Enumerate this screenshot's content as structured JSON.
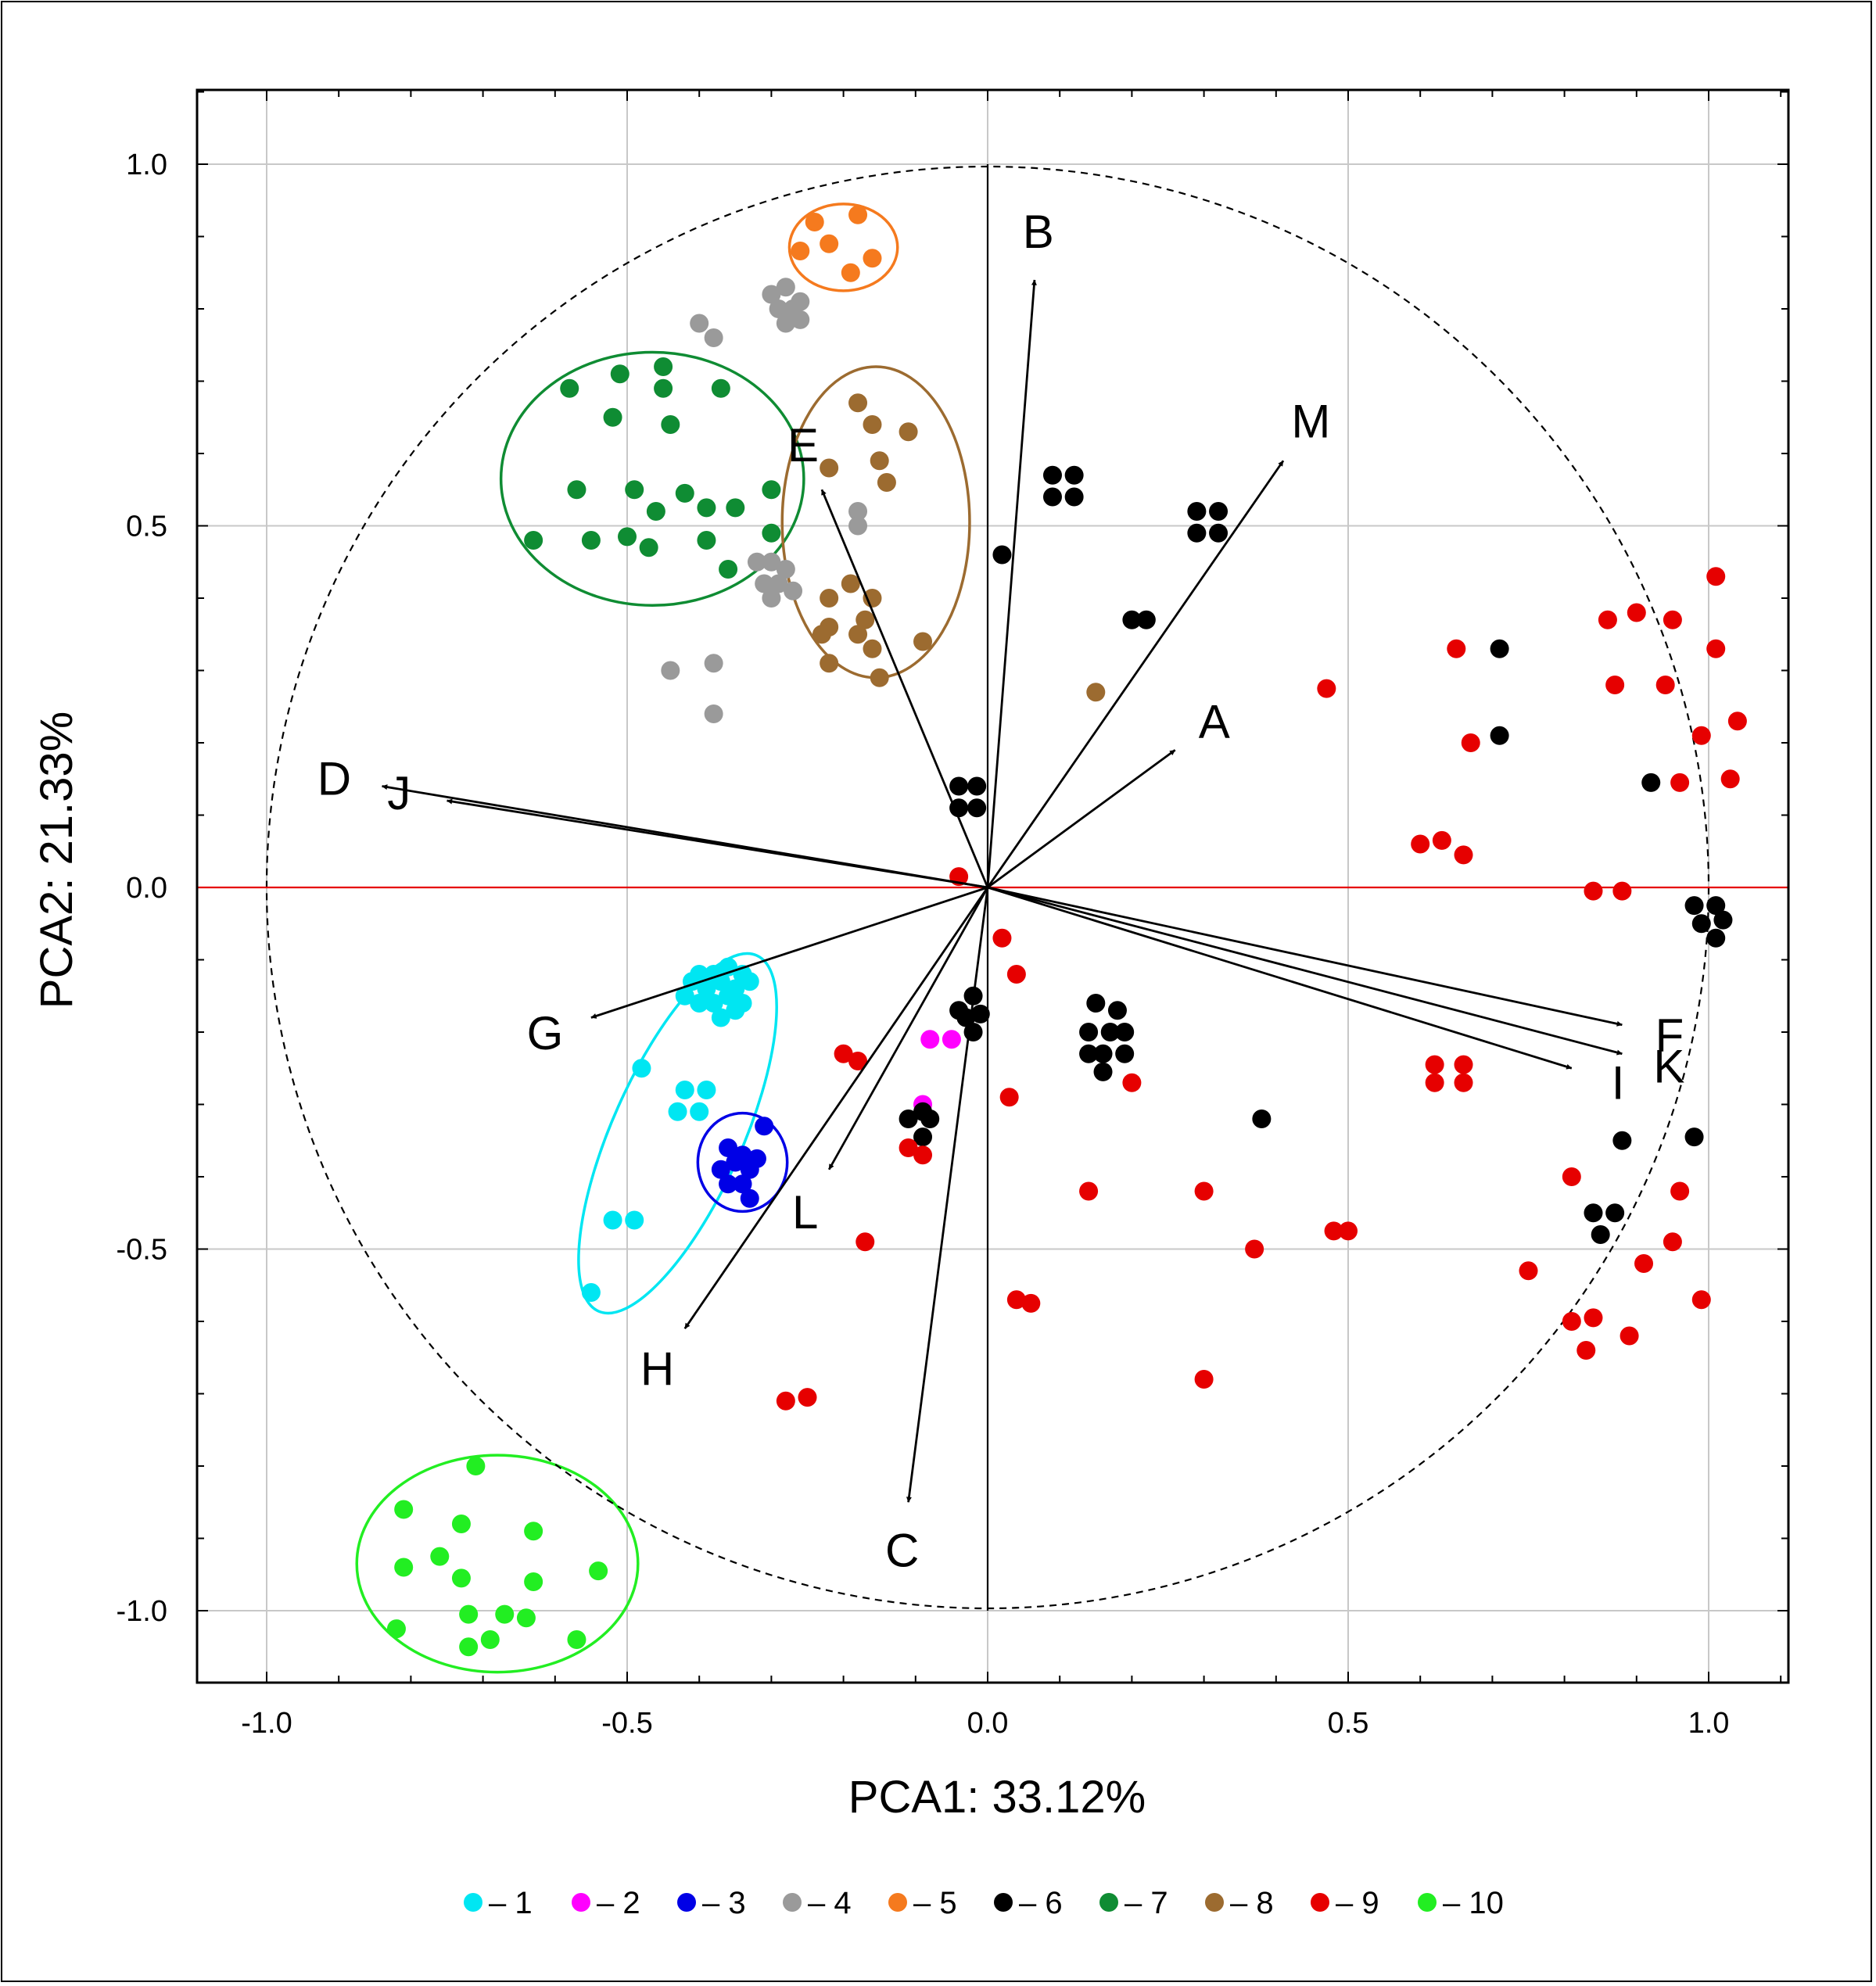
{
  "chart_data": {
    "type": "scatter",
    "subtype": "PCA biplot",
    "xlabel": "PCA1: 33.12%",
    "ylabel": "PCA2: 21.33%",
    "xlim": [
      -1.1,
      1.1
    ],
    "ylim": [
      -1.1,
      1.1
    ],
    "xticks": [
      -1.0,
      -0.5,
      0.0,
      0.5,
      1.0
    ],
    "yticks": [
      -1.0,
      -0.5,
      0.0,
      0.5,
      1.0
    ],
    "xtick_labels": [
      "-1.0",
      "-0.5",
      "0.0",
      "0.5",
      "1.0"
    ],
    "ytick_labels": [
      "1.0",
      "0.5",
      "0.0",
      "-0.5",
      "-1.0"
    ],
    "grid": true,
    "unit_circle": true,
    "legend_position": "bottom",
    "vectors": [
      {
        "label": "A",
        "x": 0.26,
        "y": 0.19
      },
      {
        "label": "B",
        "x": 0.065,
        "y": 0.84
      },
      {
        "label": "C",
        "x": -0.11,
        "y": -0.85
      },
      {
        "label": "D",
        "x": -0.84,
        "y": 0.14
      },
      {
        "label": "E",
        "x": -0.23,
        "y": 0.55
      },
      {
        "label": "F",
        "x": 0.88,
        "y": -0.19
      },
      {
        "label": "G",
        "x": -0.55,
        "y": -0.18
      },
      {
        "label": "H",
        "x": -0.42,
        "y": -0.61
      },
      {
        "label": "I",
        "x": 0.81,
        "y": -0.25
      },
      {
        "label": "J",
        "x": -0.75,
        "y": 0.12
      },
      {
        "label": "K",
        "x": 0.88,
        "y": -0.23
      },
      {
        "label": "L",
        "x": -0.22,
        "y": -0.39
      },
      {
        "label": "M",
        "x": 0.41,
        "y": 0.59
      }
    ],
    "series": [
      {
        "name": "1",
        "color": "#00e6f2",
        "points": [
          [
            -0.4,
            -0.12
          ],
          [
            -0.38,
            -0.12
          ],
          [
            -0.36,
            -0.11
          ],
          [
            -0.34,
            -0.12
          ],
          [
            -0.41,
            -0.13
          ],
          [
            -0.39,
            -0.14
          ],
          [
            -0.37,
            -0.13
          ],
          [
            -0.35,
            -0.14
          ],
          [
            -0.33,
            -0.13
          ],
          [
            -0.42,
            -0.15
          ],
          [
            -0.4,
            -0.16
          ],
          [
            -0.38,
            -0.16
          ],
          [
            -0.36,
            -0.15
          ],
          [
            -0.34,
            -0.16
          ],
          [
            -0.37,
            -0.18
          ],
          [
            -0.35,
            -0.17
          ],
          [
            -0.48,
            -0.25
          ],
          [
            -0.42,
            -0.28
          ],
          [
            -0.39,
            -0.28
          ],
          [
            -0.43,
            -0.31
          ],
          [
            -0.4,
            -0.31
          ],
          [
            -0.52,
            -0.46
          ],
          [
            -0.49,
            -0.46
          ],
          [
            -0.55,
            -0.56
          ]
        ]
      },
      {
        "name": "2",
        "color": "#ff00ff",
        "points": [
          [
            -0.08,
            -0.21
          ],
          [
            -0.05,
            -0.21
          ],
          [
            -0.09,
            -0.3
          ]
        ]
      },
      {
        "name": "3",
        "color": "#0000e6",
        "points": [
          [
            -0.31,
            -0.33
          ],
          [
            -0.36,
            -0.36
          ],
          [
            -0.34,
            -0.37
          ],
          [
            -0.32,
            -0.375
          ],
          [
            -0.37,
            -0.39
          ],
          [
            -0.35,
            -0.38
          ],
          [
            -0.33,
            -0.39
          ],
          [
            -0.36,
            -0.41
          ],
          [
            -0.34,
            -0.41
          ],
          [
            -0.33,
            -0.43
          ]
        ]
      },
      {
        "name": "4",
        "color": "#9a9a9a",
        "points": [
          [
            -0.3,
            0.82
          ],
          [
            -0.28,
            0.83
          ],
          [
            -0.26,
            0.81
          ],
          [
            -0.29,
            0.8
          ],
          [
            -0.27,
            0.8
          ],
          [
            -0.28,
            0.78
          ],
          [
            -0.26,
            0.785
          ],
          [
            -0.27,
            0.79
          ],
          [
            -0.4,
            0.78
          ],
          [
            -0.38,
            0.76
          ],
          [
            -0.18,
            0.52
          ],
          [
            -0.18,
            0.5
          ],
          [
            -0.32,
            0.45
          ],
          [
            -0.3,
            0.45
          ],
          [
            -0.28,
            0.44
          ],
          [
            -0.31,
            0.42
          ],
          [
            -0.29,
            0.42
          ],
          [
            -0.27,
            0.41
          ],
          [
            -0.3,
            0.4
          ],
          [
            -0.44,
            0.3
          ],
          [
            -0.38,
            0.31
          ],
          [
            -0.38,
            0.24
          ]
        ]
      },
      {
        "name": "5",
        "color": "#f57a1e",
        "points": [
          [
            -0.24,
            0.92
          ],
          [
            -0.18,
            0.93
          ],
          [
            -0.26,
            0.88
          ],
          [
            -0.22,
            0.89
          ],
          [
            -0.16,
            0.87
          ],
          [
            -0.19,
            0.85
          ]
        ]
      },
      {
        "name": "6",
        "color": "#000000",
        "points": [
          [
            0.09,
            0.57
          ],
          [
            0.12,
            0.57
          ],
          [
            0.09,
            0.54
          ],
          [
            0.12,
            0.54
          ],
          [
            0.29,
            0.52
          ],
          [
            0.32,
            0.52
          ],
          [
            0.29,
            0.49
          ],
          [
            0.32,
            0.49
          ],
          [
            0.02,
            0.46
          ],
          [
            0.2,
            0.37
          ],
          [
            0.22,
            0.37
          ],
          [
            -0.04,
            0.14
          ],
          [
            -0.015,
            0.14
          ],
          [
            -0.04,
            0.11
          ],
          [
            -0.015,
            0.11
          ],
          [
            -0.02,
            -0.15
          ],
          [
            -0.04,
            -0.17
          ],
          [
            -0.01,
            -0.175
          ],
          [
            -0.03,
            -0.18
          ],
          [
            -0.02,
            -0.2
          ],
          [
            0.15,
            -0.16
          ],
          [
            0.18,
            -0.17
          ],
          [
            0.14,
            -0.2
          ],
          [
            0.17,
            -0.2
          ],
          [
            0.19,
            -0.2
          ],
          [
            0.14,
            -0.23
          ],
          [
            0.16,
            -0.23
          ],
          [
            0.19,
            -0.23
          ],
          [
            0.16,
            -0.255
          ],
          [
            -0.11,
            -0.32
          ],
          [
            -0.09,
            -0.31
          ],
          [
            -0.08,
            -0.32
          ],
          [
            -0.09,
            -0.345
          ],
          [
            0.38,
            -0.32
          ],
          [
            0.71,
            0.33
          ],
          [
            0.71,
            0.21
          ],
          [
            0.92,
            0.145
          ],
          [
            0.98,
            -0.025
          ],
          [
            1.01,
            -0.025
          ],
          [
            0.99,
            -0.05
          ],
          [
            1.02,
            -0.045
          ],
          [
            1.01,
            -0.07
          ],
          [
            0.88,
            -0.35
          ],
          [
            0.98,
            -0.345
          ],
          [
            0.84,
            -0.45
          ],
          [
            0.87,
            -0.45
          ],
          [
            0.85,
            -0.48
          ]
        ]
      },
      {
        "name": "7",
        "color": "#0f8c33",
        "points": [
          [
            -0.58,
            0.69
          ],
          [
            -0.51,
            0.71
          ],
          [
            -0.45,
            0.72
          ],
          [
            -0.45,
            0.69
          ],
          [
            -0.37,
            0.69
          ],
          [
            -0.52,
            0.65
          ],
          [
            -0.44,
            0.64
          ],
          [
            -0.57,
            0.55
          ],
          [
            -0.49,
            0.55
          ],
          [
            -0.42,
            0.545
          ],
          [
            -0.3,
            0.55
          ],
          [
            -0.46,
            0.52
          ],
          [
            -0.39,
            0.525
          ],
          [
            -0.35,
            0.525
          ],
          [
            -0.63,
            0.48
          ],
          [
            -0.55,
            0.48
          ],
          [
            -0.5,
            0.485
          ],
          [
            -0.47,
            0.47
          ],
          [
            -0.39,
            0.48
          ],
          [
            -0.3,
            0.49
          ],
          [
            -0.36,
            0.44
          ]
        ]
      },
      {
        "name": "8",
        "color": "#9c6b30",
        "points": [
          [
            -0.18,
            0.67
          ],
          [
            -0.16,
            0.64
          ],
          [
            -0.11,
            0.63
          ],
          [
            -0.22,
            0.58
          ],
          [
            -0.15,
            0.59
          ],
          [
            -0.14,
            0.56
          ],
          [
            -0.22,
            0.4
          ],
          [
            -0.19,
            0.42
          ],
          [
            -0.16,
            0.4
          ],
          [
            -0.22,
            0.36
          ],
          [
            -0.17,
            0.37
          ],
          [
            -0.23,
            0.35
          ],
          [
            -0.18,
            0.35
          ],
          [
            -0.22,
            0.31
          ],
          [
            -0.16,
            0.33
          ],
          [
            -0.09,
            0.34
          ],
          [
            -0.15,
            0.29
          ],
          [
            0.15,
            0.27
          ]
        ]
      },
      {
        "name": "9",
        "color": "#e60000",
        "points": [
          [
            1.01,
            0.43
          ],
          [
            0.86,
            0.37
          ],
          [
            0.9,
            0.38
          ],
          [
            0.95,
            0.37
          ],
          [
            0.65,
            0.33
          ],
          [
            1.01,
            0.33
          ],
          [
            0.87,
            0.28
          ],
          [
            0.94,
            0.28
          ],
          [
            0.47,
            0.275
          ],
          [
            1.04,
            0.23
          ],
          [
            0.67,
            0.2
          ],
          [
            0.99,
            0.21
          ],
          [
            0.96,
            0.145
          ],
          [
            1.03,
            0.15
          ],
          [
            0.6,
            0.06
          ],
          [
            0.63,
            0.065
          ],
          [
            0.66,
            0.045
          ],
          [
            0.84,
            -0.005
          ],
          [
            0.88,
            -0.005
          ],
          [
            -0.04,
            0.015
          ],
          [
            0.02,
            -0.07
          ],
          [
            0.04,
            -0.12
          ],
          [
            -0.2,
            -0.23
          ],
          [
            -0.18,
            -0.24
          ],
          [
            0.2,
            -0.27
          ],
          [
            0.03,
            -0.29
          ],
          [
            0.62,
            -0.245
          ],
          [
            0.66,
            -0.245
          ],
          [
            0.62,
            -0.27
          ],
          [
            0.66,
            -0.27
          ],
          [
            -0.11,
            -0.36
          ],
          [
            -0.09,
            -0.37
          ],
          [
            0.14,
            -0.42
          ],
          [
            0.3,
            -0.42
          ],
          [
            0.81,
            -0.4
          ],
          [
            0.96,
            -0.42
          ],
          [
            -0.17,
            -0.49
          ],
          [
            0.48,
            -0.475
          ],
          [
            0.5,
            -0.475
          ],
          [
            0.37,
            -0.5
          ],
          [
            0.95,
            -0.49
          ],
          [
            0.75,
            -0.53
          ],
          [
            0.91,
            -0.52
          ],
          [
            0.04,
            -0.57
          ],
          [
            0.06,
            -0.575
          ],
          [
            0.81,
            -0.6
          ],
          [
            0.84,
            -0.595
          ],
          [
            0.99,
            -0.57
          ],
          [
            0.83,
            -0.64
          ],
          [
            0.89,
            -0.62
          ],
          [
            0.3,
            -0.68
          ],
          [
            -0.28,
            -0.71
          ],
          [
            -0.25,
            -0.705
          ]
        ]
      },
      {
        "name": "10",
        "color": "#22ee22",
        "points": [
          [
            -0.71,
            -0.8
          ],
          [
            -0.81,
            -0.86
          ],
          [
            -0.73,
            -0.88
          ],
          [
            -0.63,
            -0.89
          ],
          [
            -0.76,
            -0.925
          ],
          [
            -0.81,
            -0.94
          ],
          [
            -0.54,
            -0.945
          ],
          [
            -0.73,
            -0.955
          ],
          [
            -0.63,
            -0.96
          ],
          [
            -0.72,
            -1.005
          ],
          [
            -0.67,
            -1.005
          ],
          [
            -0.64,
            -1.01
          ],
          [
            -0.82,
            -1.025
          ],
          [
            -0.69,
            -1.04
          ],
          [
            -0.72,
            -1.05
          ],
          [
            -0.57,
            -1.04
          ]
        ]
      }
    ],
    "ellipses": [
      {
        "group": "1",
        "color": "#00e6f2",
        "cx": -0.43,
        "cy": -0.34,
        "rx": 0.27,
        "ry": 0.09,
        "rotation": -66
      },
      {
        "group": "3",
        "color": "#0000e6",
        "cx": -0.34,
        "cy": -0.38,
        "rx": 0.062,
        "ry": 0.068,
        "rotation": 0
      },
      {
        "group": "5",
        "color": "#f57a1e",
        "cx": -0.2,
        "cy": 0.885,
        "rx": 0.075,
        "ry": 0.06,
        "rotation": 0
      },
      {
        "group": "7",
        "color": "#0f8c33",
        "cx": -0.465,
        "cy": 0.565,
        "rx": 0.21,
        "ry": 0.175,
        "rotation": 0
      },
      {
        "group": "8",
        "color": "#9c6b30",
        "cx": -0.155,
        "cy": 0.505,
        "rx": 0.13,
        "ry": 0.215,
        "rotation": 0
      },
      {
        "group": "10",
        "color": "#22ee22",
        "cx": -0.68,
        "cy": -0.935,
        "rx": 0.195,
        "ry": 0.15,
        "rotation": 0
      }
    ]
  }
}
